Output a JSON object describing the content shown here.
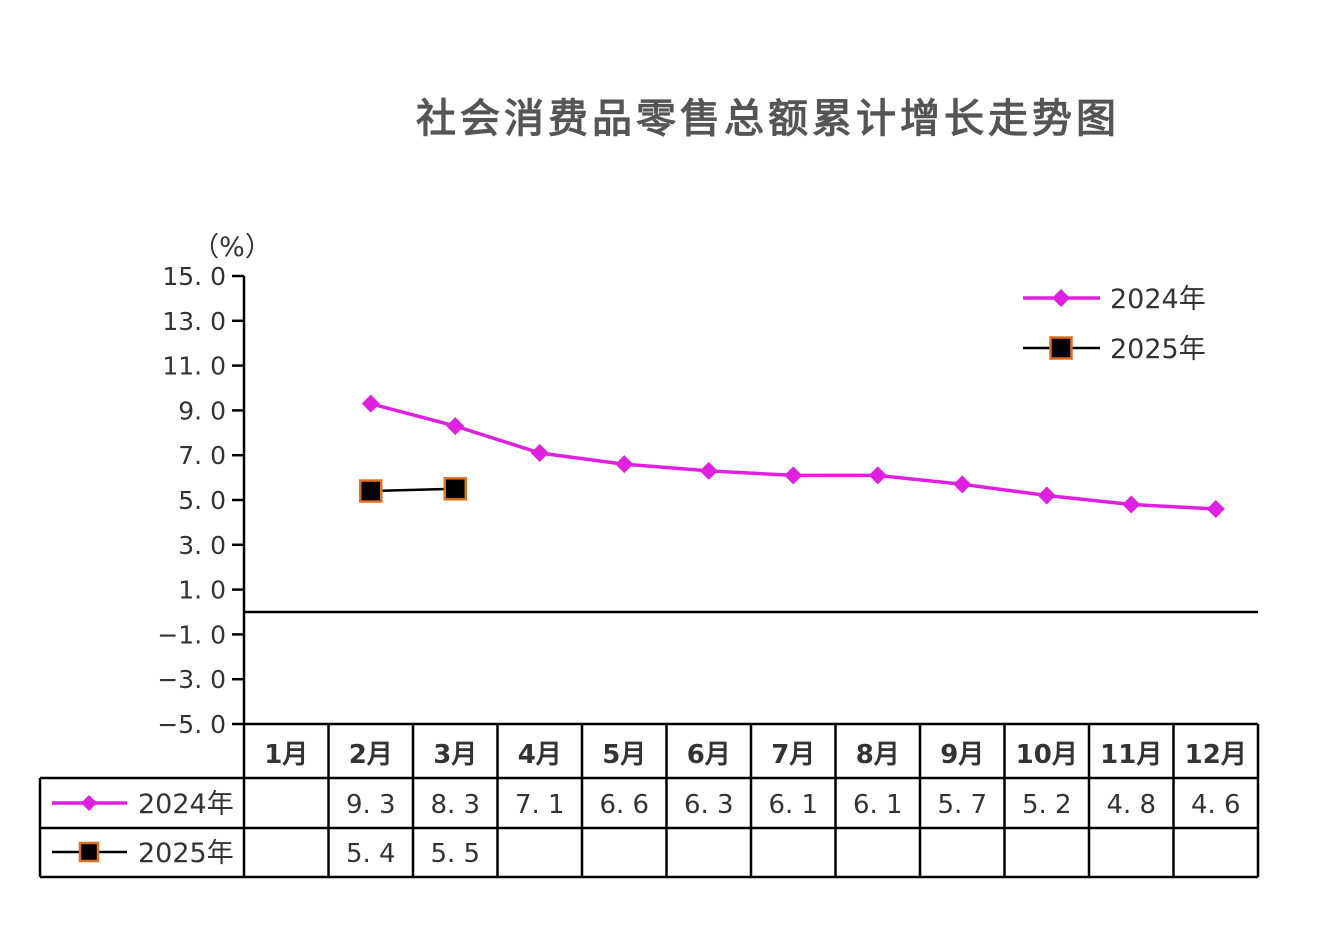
{
  "chart_data": {
    "type": "line",
    "title": "社会消费品零售总额累计增长走势图",
    "unit_label": "（%）",
    "ylim": [
      -5.0,
      15.0
    ],
    "y_ticks": [
      "15. 0",
      "13. 0",
      "11. 0",
      "9. 0",
      "7. 0",
      "5. 0",
      "3. 0",
      "1. 0",
      "−1. 0",
      "−3. 0",
      "−5. 0"
    ],
    "categories": [
      "1月",
      "2月",
      "3月",
      "4月",
      "5月",
      "6月",
      "7月",
      "8月",
      "9月",
      "10月",
      "11月",
      "12月"
    ],
    "legend_position": "top-right",
    "grid": false,
    "series": [
      {
        "name": "2024年",
        "color": "#e020e0",
        "marker": "diamond",
        "values": [
          null,
          9.3,
          8.3,
          7.1,
          6.6,
          6.3,
          6.1,
          6.1,
          5.7,
          5.2,
          4.8,
          4.6
        ],
        "table_labels": [
          "",
          "9. 3",
          "8. 3",
          "7. 1",
          "6. 6",
          "6. 3",
          "6. 1",
          "6. 1",
          "5. 7",
          "5. 2",
          "4. 8",
          "4. 6"
        ]
      },
      {
        "name": "2025年",
        "color": "#000000",
        "marker": "square",
        "marker_edge": "#e07020",
        "values": [
          null,
          5.4,
          5.5,
          null,
          null,
          null,
          null,
          null,
          null,
          null,
          null,
          null
        ],
        "table_labels": [
          "",
          "5. 4",
          "5. 5",
          "",
          "",
          "",
          "",
          "",
          "",
          "",
          "",
          ""
        ]
      }
    ]
  }
}
